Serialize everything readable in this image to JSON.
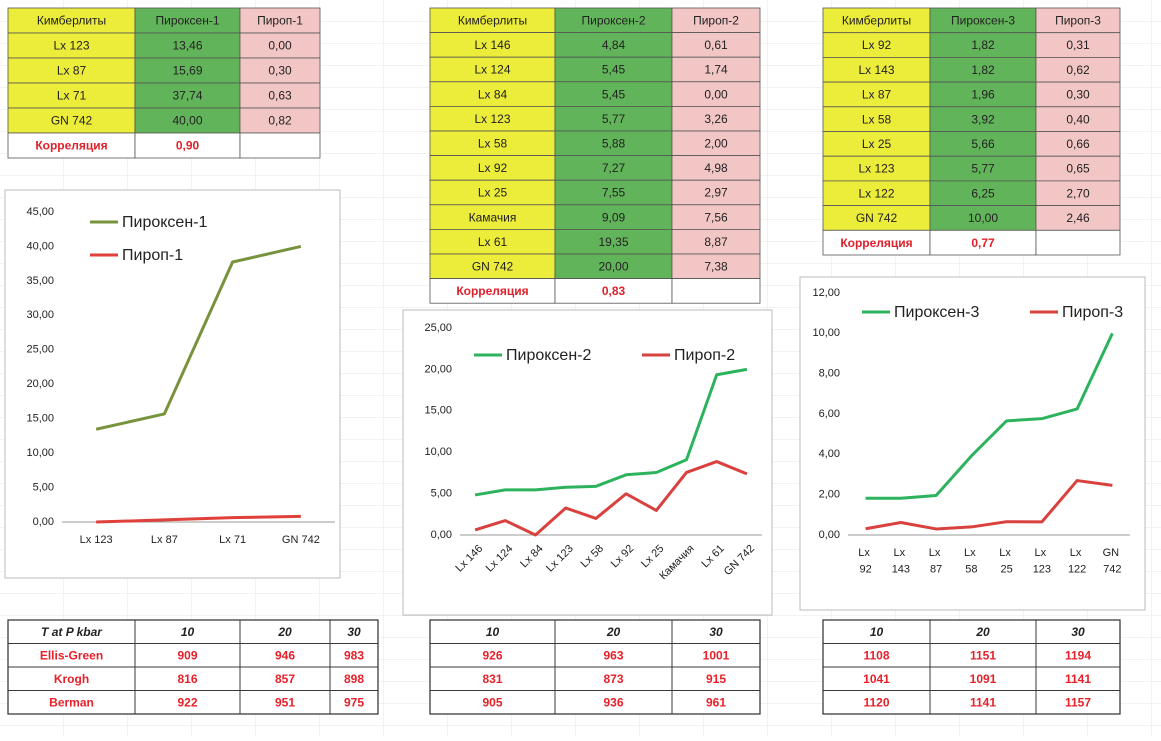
{
  "tables": [
    {
      "header": [
        "Кимберлиты",
        "Пироксен-1",
        "Пироп-1"
      ],
      "rows": [
        [
          "Lx 123",
          "13,46",
          "0,00"
        ],
        [
          "Lx 87",
          "15,69",
          "0,30"
        ],
        [
          "Lx 71",
          "37,74",
          "0,63"
        ],
        [
          "GN 742",
          "40,00",
          "0,82"
        ]
      ],
      "correlation": {
        "label": "Корреляция",
        "value": "0,90"
      }
    },
    {
      "header": [
        "Кимберлиты",
        "Пироксен-2",
        "Пироп-2"
      ],
      "rows": [
        [
          "Lx 146",
          "4,84",
          "0,61"
        ],
        [
          "Lx 124",
          "5,45",
          "1,74"
        ],
        [
          "Lx 84",
          "5,45",
          "0,00"
        ],
        [
          "Lx 123",
          "5,77",
          "3,26"
        ],
        [
          "Lx 58",
          "5,88",
          "2,00"
        ],
        [
          "Lx 92",
          "7,27",
          "4,98"
        ],
        [
          "Lx 25",
          "7,55",
          "2,97"
        ],
        [
          "Камачия",
          "9,09",
          "7,56"
        ],
        [
          "Lx 61",
          "19,35",
          "8,87"
        ],
        [
          "GN 742",
          "20,00",
          "7,38"
        ]
      ],
      "correlation": {
        "label": "Корреляция",
        "value": "0,83"
      }
    },
    {
      "header": [
        "Кимберлиты",
        "Пироксен-3",
        "Пироп-3"
      ],
      "rows": [
        [
          "Lx 92",
          "1,82",
          "0,31"
        ],
        [
          "Lx 143",
          "1,82",
          "0,62"
        ],
        [
          "Lx 87",
          "1,96",
          "0,30"
        ],
        [
          "Lx 58",
          "3,92",
          "0,40"
        ],
        [
          "Lx 25",
          "5,66",
          "0,66"
        ],
        [
          "Lx 123",
          "5,77",
          "0,65"
        ],
        [
          "Lx 122",
          "6,25",
          "2,70"
        ],
        [
          "GN 742",
          "10,00",
          "2,46"
        ]
      ],
      "correlation": {
        "label": "Корреляция",
        "value": "0,77"
      }
    }
  ],
  "chart_data": [
    {
      "type": "line",
      "categories": [
        "Lx 123",
        "Lx 87",
        "Lx 71",
        "GN 742"
      ],
      "series": [
        {
          "name": "Пироксен-1",
          "color": "#77933c",
          "values": [
            13.46,
            15.69,
            37.74,
            40.0
          ]
        },
        {
          "name": "Пироп-1",
          "color": "#e0403a",
          "values": [
            0.0,
            0.3,
            0.63,
            0.82
          ]
        }
      ],
      "ylim": [
        0,
        45
      ],
      "yticks": [
        {
          "value": 0,
          "label": "0,00"
        },
        {
          "value": 5,
          "label": "5,00"
        },
        {
          "value": 10,
          "label": "10,00"
        },
        {
          "value": 15,
          "label": "15,00"
        },
        {
          "value": 20,
          "label": "20,00"
        },
        {
          "value": 25,
          "label": "25,00"
        },
        {
          "value": 30,
          "label": "30,00"
        },
        {
          "value": 35,
          "label": "35,00"
        },
        {
          "value": 40,
          "label": "40,00"
        },
        {
          "value": 45,
          "label": "45,00"
        }
      ],
      "grid": false,
      "legend": "upper left"
    },
    {
      "type": "line",
      "categories": [
        "Lx 146",
        "Lx 124",
        "Lx 84",
        "Lx 123",
        "Lx 58",
        "Lx 92",
        "Lx 25",
        "Камачия",
        "Lx 61",
        "GN 742"
      ],
      "series": [
        {
          "name": "Пироксен-2",
          "color": "#2db35e",
          "values": [
            4.84,
            5.45,
            5.45,
            5.77,
            5.88,
            7.27,
            7.55,
            9.09,
            19.35,
            20.0
          ]
        },
        {
          "name": "Пироп-2",
          "color": "#d9413e",
          "values": [
            0.61,
            1.74,
            0.0,
            3.26,
            2.0,
            4.98,
            2.97,
            7.56,
            8.87,
            7.38
          ]
        }
      ],
      "ylim": [
        0,
        25
      ],
      "yticks": [
        {
          "value": 0,
          "label": "0,00"
        },
        {
          "value": 5,
          "label": "5,00"
        },
        {
          "value": 10,
          "label": "10,00"
        },
        {
          "value": 15,
          "label": "15,00"
        },
        {
          "value": 20,
          "label": "20,00"
        },
        {
          "value": 25,
          "label": "25,00"
        }
      ],
      "grid": false,
      "legend": "upper center",
      "xtick_rotation": 45
    },
    {
      "type": "line",
      "categories": [
        "Lx 92",
        "Lx 143",
        "Lx 87",
        "Lx 58",
        "Lx 25",
        "Lx 123",
        "Lx 122",
        "GN 742"
      ],
      "series": [
        {
          "name": "Пироксен-3",
          "color": "#2db35e",
          "values": [
            1.82,
            1.82,
            1.96,
            3.92,
            5.66,
            5.77,
            6.25,
            10.0
          ]
        },
        {
          "name": "Пироп-3",
          "color": "#d9413e",
          "values": [
            0.31,
            0.62,
            0.3,
            0.4,
            0.66,
            0.65,
            2.7,
            2.46
          ]
        }
      ],
      "ylim": [
        0,
        12
      ],
      "yticks": [
        {
          "value": 0,
          "label": "0,00"
        },
        {
          "value": 2,
          "label": "2,00"
        },
        {
          "value": 4,
          "label": "4,00"
        },
        {
          "value": 6,
          "label": "6,00"
        },
        {
          "value": 8,
          "label": "8,00"
        },
        {
          "value": 10,
          "label": "10,00"
        },
        {
          "value": 12,
          "label": "12,00"
        }
      ],
      "grid": false,
      "legend": "upper center"
    }
  ],
  "temperature_tables": [
    {
      "header": [
        "T at P kbar",
        "10",
        "20",
        "30"
      ],
      "rows": [
        [
          "Ellis-Green",
          "909",
          "946",
          "983"
        ],
        [
          "Krogh",
          "816",
          "857",
          "898"
        ],
        [
          "Berman",
          "922",
          "951",
          "975"
        ]
      ]
    },
    {
      "header": [
        "10",
        "20",
        "30"
      ],
      "rows": [
        [
          "926",
          "963",
          "1001"
        ],
        [
          "831",
          "873",
          "915"
        ],
        [
          "905",
          "936",
          "961"
        ]
      ]
    },
    {
      "header": [
        "10",
        "20",
        "30"
      ],
      "rows": [
        [
          "1108",
          "1151",
          "1194"
        ],
        [
          "1041",
          "1091",
          "1141"
        ],
        [
          "1120",
          "1141",
          "1157"
        ]
      ]
    }
  ]
}
